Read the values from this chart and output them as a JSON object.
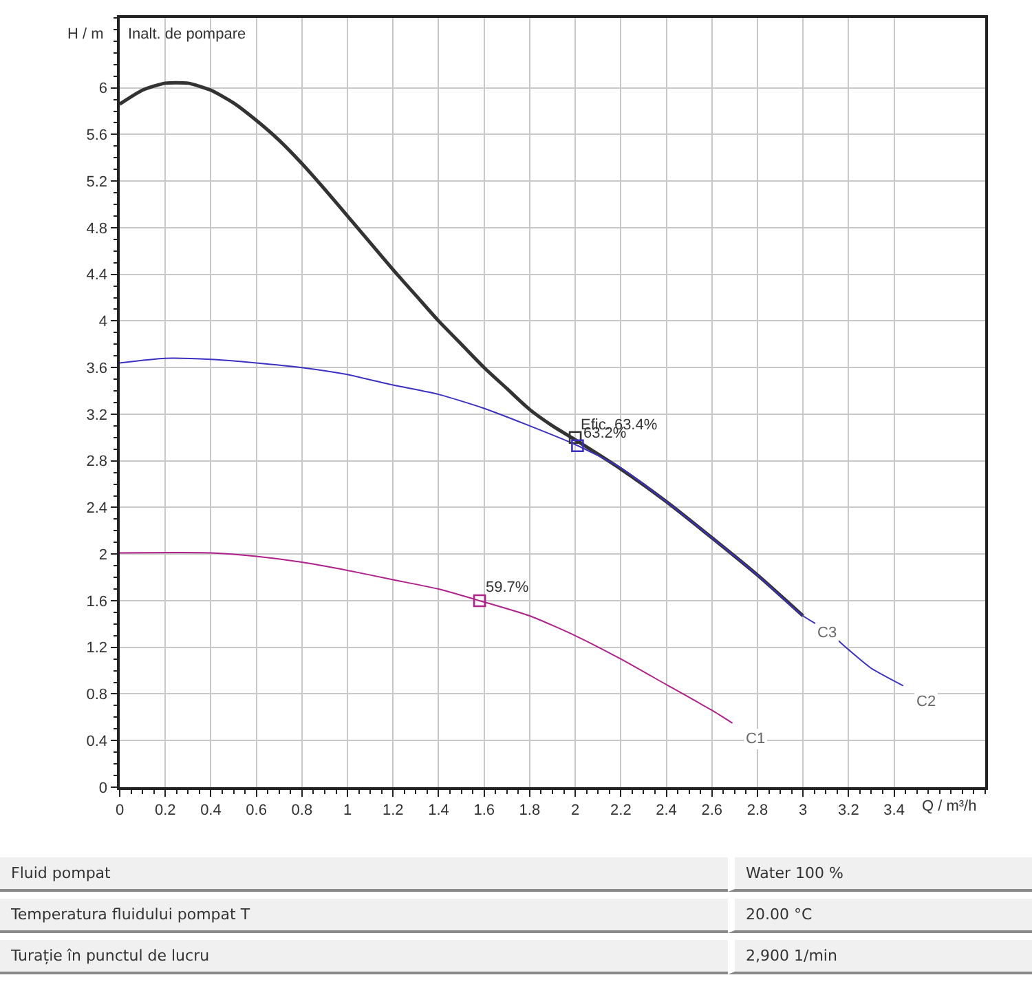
{
  "chart_data": {
    "type": "line",
    "xlabel": "Q / m³/h",
    "ylabel": "H / m",
    "xlim": [
      0,
      3.8
    ],
    "ylim": [
      0,
      6.6
    ],
    "xticks": [
      0,
      0.2,
      0.4,
      0.6,
      0.8,
      1,
      1.2,
      1.4,
      1.6,
      1.8,
      2,
      2.2,
      2.4,
      2.6,
      2.8,
      3,
      3.2,
      3.4
    ],
    "yticks": [
      0,
      0.4,
      0.8,
      1.2,
      1.6,
      2,
      2.4,
      2.8,
      3.2,
      3.6,
      4,
      4.4,
      4.8,
      5.2,
      5.6,
      6
    ],
    "grid": true,
    "legend": false,
    "marker": "none",
    "line_style": "solid",
    "series": [
      {
        "name": "C3",
        "color": "#333333",
        "x": [
          0,
          0.1,
          0.2,
          0.3,
          0.4,
          0.5,
          0.6,
          0.7,
          0.8,
          0.9,
          1,
          1.1,
          1.2,
          1.3,
          1.4,
          1.5,
          1.6,
          1.7,
          1.8,
          1.9,
          2,
          2.2,
          2.4,
          2.6,
          2.8,
          3
        ],
        "values": [
          5.86,
          5.98,
          6.04,
          6.04,
          5.98,
          5.87,
          5.72,
          5.55,
          5.35,
          5.13,
          4.9,
          4.67,
          4.44,
          4.22,
          4,
          3.8,
          3.6,
          3.42,
          3.24,
          3.1,
          2.98,
          2.73,
          2.45,
          2.14,
          1.82,
          1.47
        ]
      },
      {
        "name": "C2",
        "color": "#3b2fc4",
        "x": [
          0,
          0.2,
          0.4,
          0.6,
          0.8,
          1,
          1.2,
          1.4,
          1.6,
          1.8,
          2,
          2.2,
          2.4,
          2.6,
          2.8,
          3,
          3.1,
          3.2,
          3.3,
          3.44
        ],
        "values": [
          3.64,
          3.68,
          3.67,
          3.64,
          3.6,
          3.54,
          3.45,
          3.37,
          3.25,
          3.1,
          2.94,
          2.74,
          2.45,
          2.14,
          1.82,
          1.47,
          1.35,
          1.18,
          1.02,
          0.87
        ]
      },
      {
        "name": "C1",
        "color": "#b0208a",
        "x": [
          0,
          0.4,
          0.6,
          0.8,
          1,
          1.2,
          1.4,
          1.58,
          1.8,
          2,
          2.2,
          2.4,
          2.6,
          2.69
        ],
        "values": [
          2.01,
          2.01,
          1.98,
          1.93,
          1.86,
          1.78,
          1.7,
          1.6,
          1.47,
          1.3,
          1.1,
          0.88,
          0.66,
          0.55
        ]
      },
      {
        "type": "scatter",
        "marker": "square",
        "colors": [
          "#333333",
          "#3b2fc4",
          "#b0208a"
        ],
        "x": [
          2,
          2.01,
          1.58
        ],
        "values": [
          3,
          2.93,
          1.6
        ]
      }
    ],
    "annotations": [
      "Inalt. de pompare",
      {
        "text": "Efic. 63.4%",
        "x": 2,
        "y": 3
      },
      {
        "text": "63.2%",
        "x": 2.01,
        "y": 2.93
      },
      {
        "text": "59.7%",
        "x": 1.58,
        "y": 1.6
      },
      "Fluid pompat",
      "Water 100 %",
      "Temperatura fluidului pompat T",
      "20.00 °C",
      "Turație în punctul de lucru",
      "2,900 1/min"
    ]
  }
}
